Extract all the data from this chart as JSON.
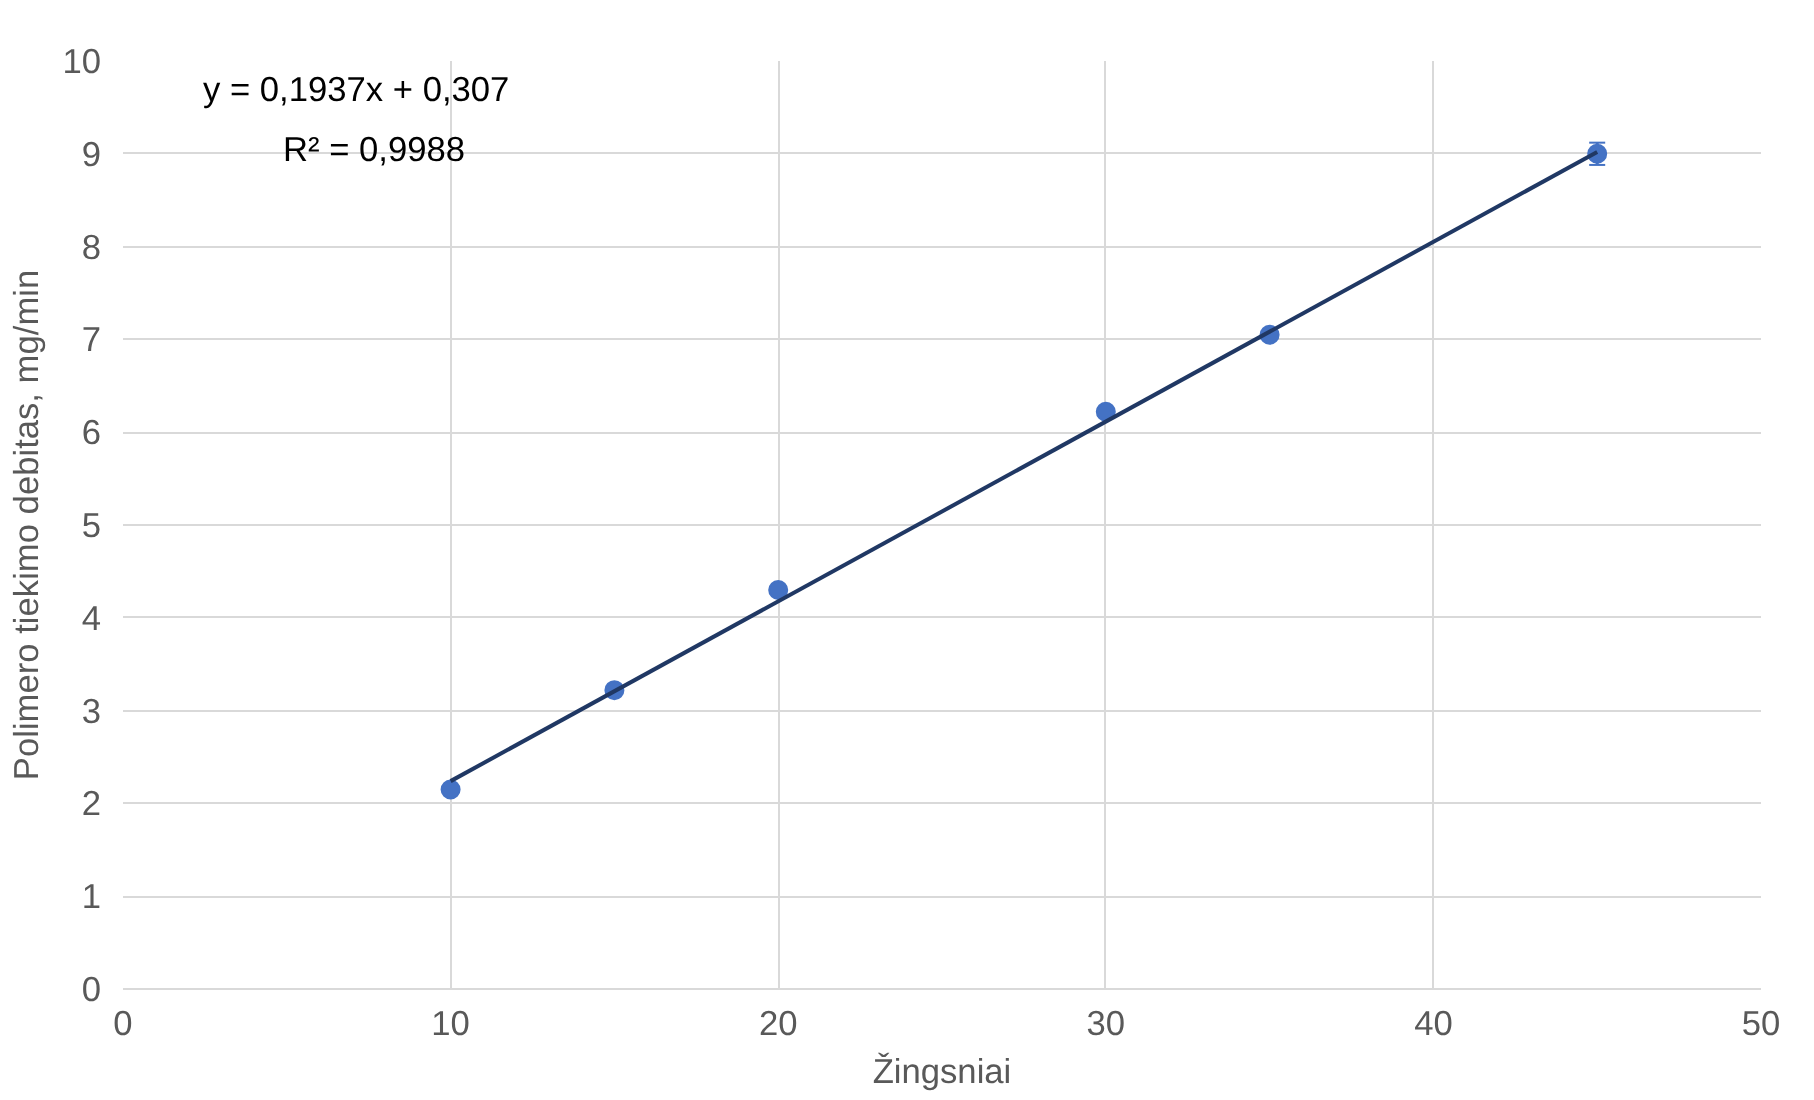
{
  "chart_data": {
    "type": "scatter",
    "xlabel": "Žingsniai",
    "ylabel": "Polimero tiekimo debitas, mg/min",
    "x": [
      10,
      15,
      20,
      30,
      35,
      45
    ],
    "series": [
      {
        "color": "#4472c4",
        "marker": "circle",
        "values": [
          2.15,
          3.22,
          4.3,
          6.22,
          7.05,
          9.0
        ],
        "errors": [
          null,
          null,
          null,
          null,
          null,
          0.12
        ]
      },
      {
        "type": "line",
        "color": "#203864",
        "x": [
          10,
          45
        ],
        "values": [
          2.24,
          9.02
        ]
      }
    ],
    "annotations": [
      "y = 0,1937x + 0,307",
      "R² = 0,9988"
    ],
    "xlim": [
      0,
      50
    ],
    "xticks": [
      0,
      10,
      20,
      30,
      40,
      50
    ],
    "ylim": [
      0,
      10
    ],
    "yticks": [
      0,
      1,
      2,
      3,
      4,
      5,
      6,
      7,
      8,
      9,
      10
    ],
    "grid": true
  }
}
